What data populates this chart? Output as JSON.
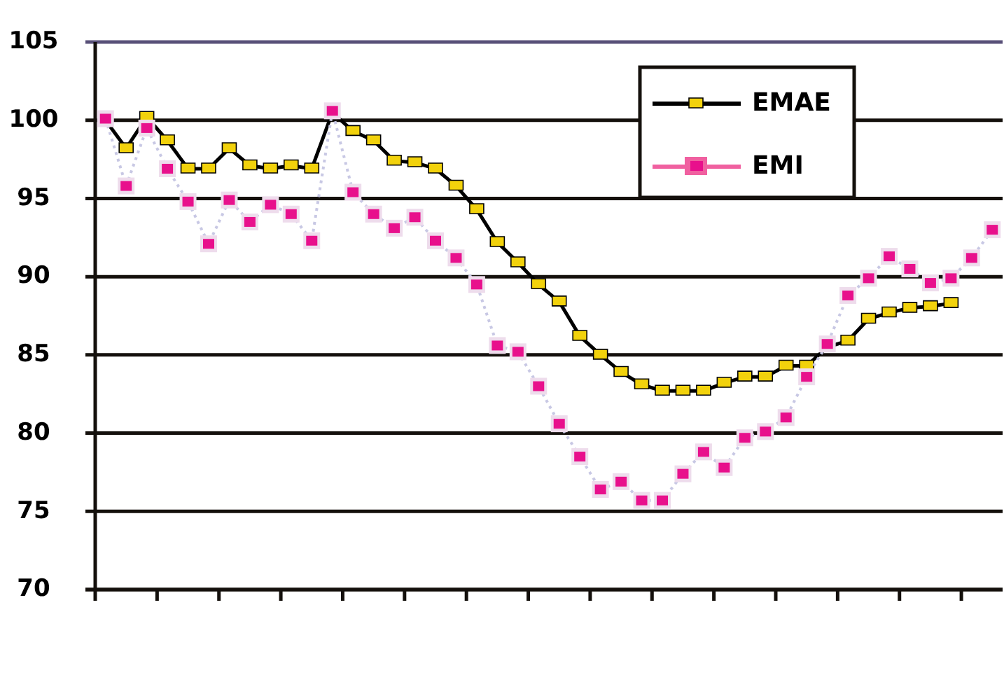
{
  "chart_data": {
    "type": "line",
    "categories": [
      null,
      null,
      null,
      null,
      null,
      null,
      null,
      null,
      null,
      null,
      null,
      null,
      null,
      null,
      null,
      null,
      null,
      null,
      null,
      null,
      null,
      null,
      null,
      null,
      null,
      null,
      null,
      null,
      null,
      null,
      null,
      null,
      null,
      null,
      null,
      null,
      null,
      null,
      null,
      null,
      null,
      null,
      null,
      null
    ],
    "series": [
      {
        "name": "EMAE",
        "color": "#000000",
        "marker": "square",
        "line_style": "solid",
        "values": [
          100,
          98.2,
          100.2,
          98.7,
          96.9,
          96.9,
          98.2,
          97.1,
          96.9,
          97.1,
          96.9,
          100.5,
          99.3,
          98.7,
          97.4,
          97.3,
          96.9,
          95.8,
          94.3,
          92.2,
          90.9,
          89.5,
          88.4,
          86.2,
          85,
          83.9,
          83.1,
          82.7,
          82.7,
          82.7,
          83.2,
          83.6,
          83.6,
          84.3,
          84.3,
          85.5,
          85.9,
          87.3,
          87.7,
          88,
          88.1,
          88.3,
          null,
          null
        ]
      },
      {
        "name": "EMI",
        "color": "#e8108c",
        "marker": "square",
        "line_style": "dotted",
        "values": [
          100.1,
          95.8,
          99.5,
          96.9,
          94.8,
          92.1,
          94.9,
          93.5,
          94.6,
          94,
          92.3,
          100.6,
          95.4,
          94,
          93.1,
          93.8,
          92.3,
          91.2,
          89.5,
          85.6,
          85.2,
          83,
          80.6,
          78.5,
          76.4,
          76.9,
          75.7,
          75.7,
          77.4,
          78.8,
          77.8,
          79.7,
          80.1,
          81,
          83.6,
          85.7,
          88.8,
          89.9,
          91.3,
          90.5,
          89.6,
          89.9,
          91.2,
          93
        ]
      }
    ],
    "ylim": [
      70,
      105
    ],
    "yticks": [
      70,
      75,
      80,
      85,
      90,
      95,
      100,
      105
    ],
    "grid": "y",
    "legend": "top right",
    "tick_labels": "y"
  }
}
